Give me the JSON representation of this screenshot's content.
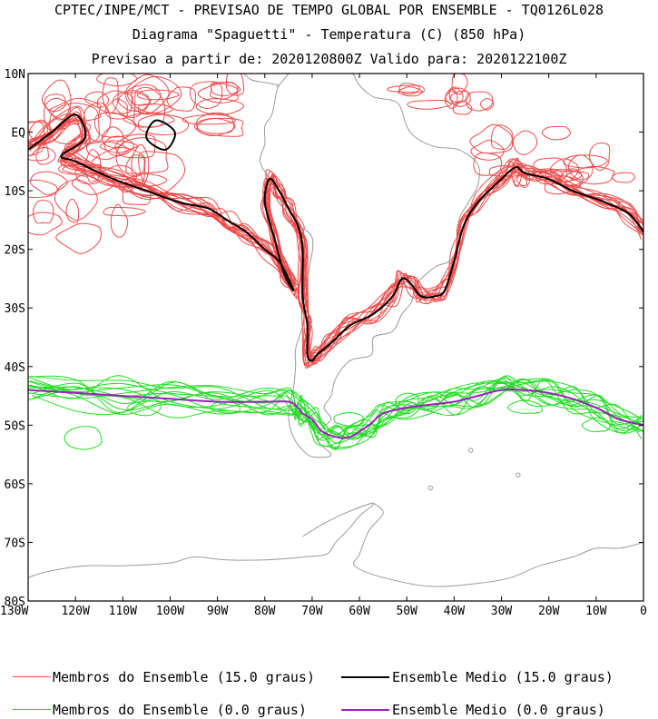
{
  "header": {
    "line1": "CPTEC/INPE/MCT - PREVISAO DE TEMPO GLOBAL POR ENSEMBLE - TQ0126L028",
    "line2": "Diagrama \"Spaguetti\" - Temperatura (C) (850 hPa)",
    "line3": "Previsao a partir de: 2020120800Z  Valido para: 2020122100Z"
  },
  "axes": {
    "lat_labels": [
      "10N",
      "EQ",
      "10S",
      "20S",
      "30S",
      "40S",
      "50S",
      "60S",
      "70S",
      "80S"
    ],
    "lat_values": [
      10,
      0,
      -10,
      -20,
      -30,
      -40,
      -50,
      -60,
      -70,
      -80
    ],
    "lon_labels": [
      "130W",
      "120W",
      "110W",
      "100W",
      "90W",
      "80W",
      "70W",
      "60W",
      "50W",
      "40W",
      "30W",
      "20W",
      "10W",
      "0"
    ],
    "lon_values": [
      -130,
      -120,
      -110,
      -100,
      -90,
      -80,
      -70,
      -60,
      -50,
      -40,
      -30,
      -20,
      -10,
      0
    ]
  },
  "colors": {
    "member15": "#ef4a4a",
    "mean15": "#000000",
    "member0": "#22dd22",
    "mean0": "#9b1fbf",
    "coast": "#9a9a9a"
  },
  "legend": {
    "member15_label": "Membros do Ensemble (15.0 graus)",
    "mean15_label": "Ensemble Medio (15.0 graus)",
    "member0_label": "Membros do Ensemble (0.0 graus)",
    "mean0_label": "Ensemble Medio (0.0 graus)"
  },
  "chart_data": {
    "type": "spaghetti-contour",
    "title": "Diagrama \"Spaguetti\" - Temperatura (C) (850 hPa)",
    "variable": "Temperatura (C) 850 hPa",
    "xlim": [
      -130,
      0
    ],
    "ylim": [
      -80,
      10
    ],
    "series": [
      {
        "name": "Ensemble Medio (15.0 graus)",
        "isotherm": 15.0,
        "lon": [
          -130,
          -125,
          -120,
          -118,
          -123,
          -120,
          -112,
          -105,
          -98,
          -92,
          -88,
          -84,
          -80,
          -77,
          -75,
          -74,
          -76,
          -78,
          -80,
          -79,
          -77,
          -75,
          -73,
          -72,
          -72,
          -71,
          -71,
          -70,
          -69,
          -66,
          -62,
          -57,
          -53,
          -51,
          -49,
          -47,
          -44,
          -42,
          -40,
          -38,
          -35,
          -30,
          -27,
          -25,
          -20,
          -15,
          -8,
          -3,
          0
        ],
        "lat": [
          -3,
          0,
          3,
          -1,
          -4,
          -5,
          -8,
          -10,
          -12,
          -13,
          -15,
          -17,
          -20,
          -22,
          -25,
          -27,
          -24,
          -18,
          -12,
          -8,
          -10,
          -13,
          -16,
          -20,
          -28,
          -33,
          -38,
          -39,
          -38,
          -36,
          -33,
          -31,
          -28,
          -25,
          -26,
          -28,
          -28,
          -27,
          -22,
          -16,
          -12,
          -8,
          -6,
          -7,
          -8,
          -10,
          -12,
          -14,
          -17
        ]
      },
      {
        "name": "Ensemble Medio (0.0 graus)",
        "isotherm": 0.0,
        "lon": [
          -130,
          -120,
          -110,
          -100,
          -90,
          -80,
          -75,
          -73,
          -72,
          -70,
          -68,
          -65,
          -62,
          -58,
          -55,
          -50,
          -45,
          -40,
          -35,
          -30,
          -25,
          -20,
          -15,
          -10,
          -5,
          0
        ],
        "lat": [
          -44,
          -44.5,
          -45,
          -45.5,
          -46,
          -46,
          -46,
          -47,
          -48,
          -49,
          -51,
          -52,
          -52,
          -50,
          -48,
          -47,
          -46.5,
          -46,
          -45,
          -44,
          -44,
          -44.5,
          -45.5,
          -47,
          -49,
          -50
        ]
      }
    ],
    "member_counts": {
      "15.0": 14,
      "0.0": 14
    }
  }
}
